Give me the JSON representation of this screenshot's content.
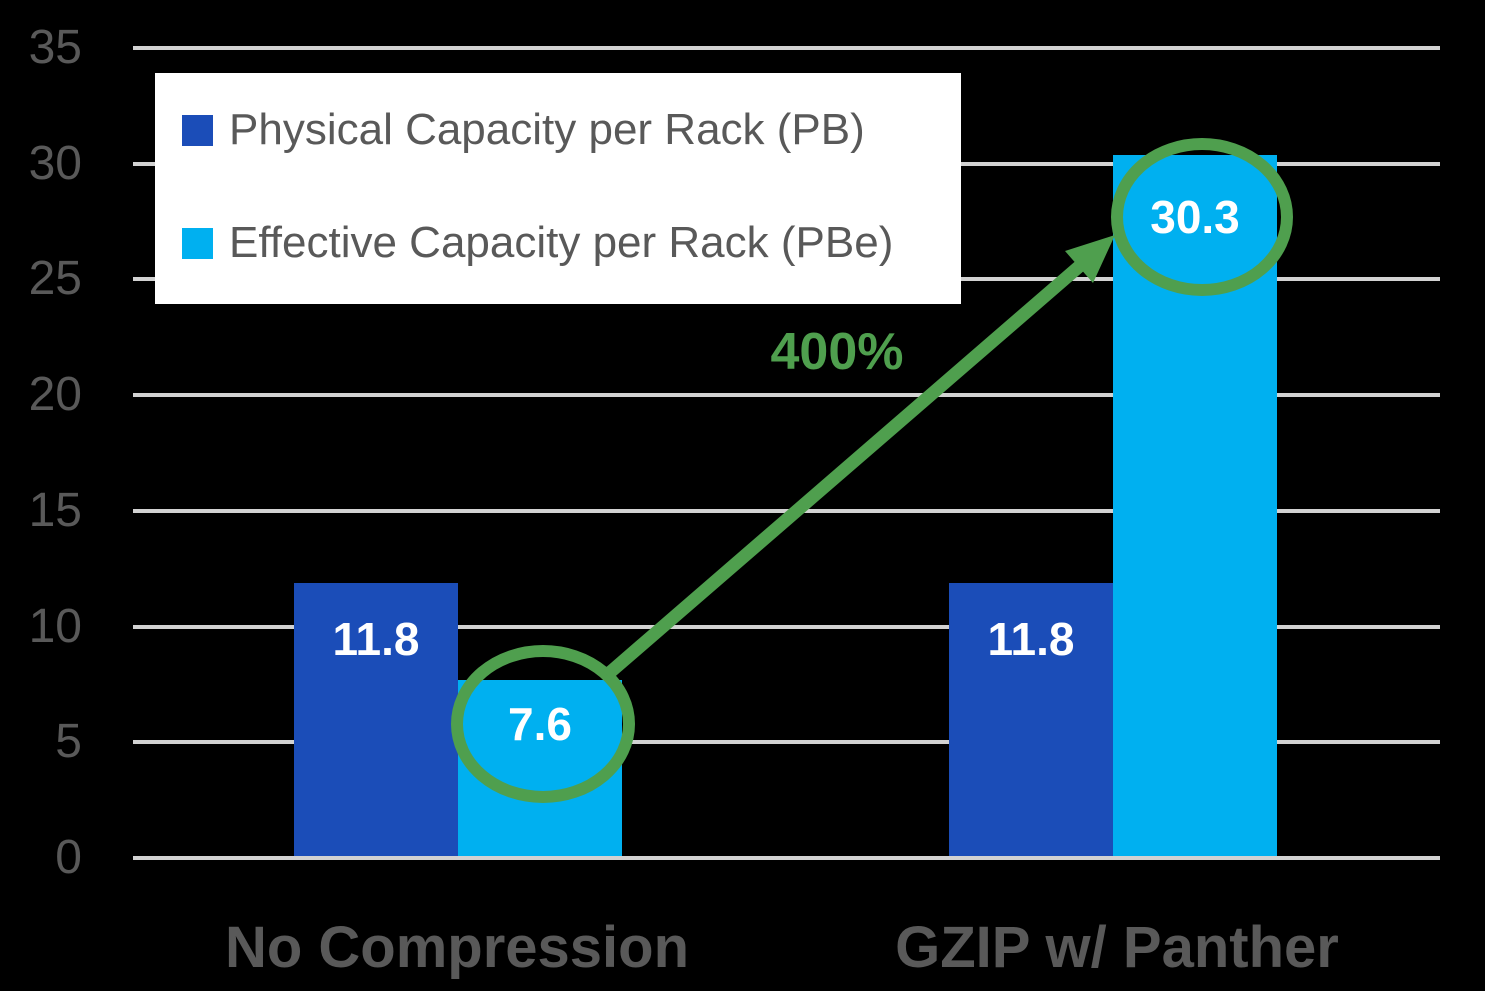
{
  "colors": {
    "background": "#000000",
    "physical_bar": "#1B4DB8",
    "effective_bar": "#00B0F0",
    "annotation_green": "#4F9F4E",
    "axis_text": "#595959",
    "gridline": "#D2D2D2",
    "value_label": "#FFFFFF",
    "legend_background": "#FFFFFF"
  },
  "legend": {
    "items": [
      {
        "label": "Physical Capacity per Rack (PB)",
        "color": "#1B4DB8"
      },
      {
        "label": "Effective Capacity per Rack (PBe)",
        "color": "#00B0F0"
      }
    ]
  },
  "annotation": {
    "growth_label": "400%"
  },
  "chart_data": {
    "type": "bar",
    "categories": [
      "No Compression",
      "GZIP w/ Panther"
    ],
    "series": [
      {
        "name": "Physical Capacity per Rack (PB)",
        "color": "#1B4DB8",
        "values": [
          11.8,
          11.8
        ]
      },
      {
        "name": "Effective Capacity per Rack (PBe)",
        "color": "#00B0F0",
        "values": [
          7.6,
          30.3
        ]
      }
    ],
    "value_labels": [
      "11.8",
      "7.6",
      "30.3"
    ],
    "yticks": [
      0,
      5,
      10,
      15,
      20,
      25,
      30,
      35
    ],
    "ylim": [
      0,
      35
    ],
    "grid": true,
    "legend_position": "top-left",
    "annotations": {
      "growth_label": "400%",
      "arrow_from": {
        "category": "No Compression",
        "series": "Effective Capacity per Rack (PBe)",
        "value": 7.6
      },
      "arrow_to": {
        "category": "GZIP w/ Panther",
        "series": "Effective Capacity per Rack (PBe)",
        "value": 30.3
      },
      "circled_values": [
        7.6,
        30.3
      ]
    }
  }
}
